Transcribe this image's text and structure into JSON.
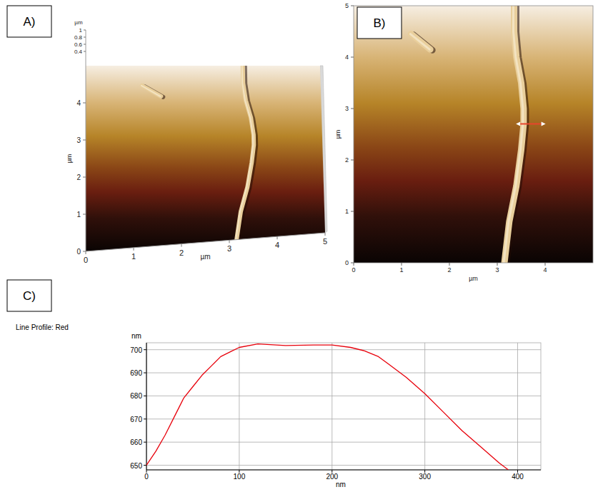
{
  "chart_data": [
    {
      "type": "surface",
      "panel_label": "A)",
      "x_label": "µm",
      "y_label": "µm",
      "z_label": "µm",
      "xlim": [
        0,
        5
      ],
      "ylim": [
        0,
        5
      ],
      "zlim": [
        0,
        1
      ],
      "xticks": [
        0,
        1,
        2,
        3,
        4,
        5
      ],
      "yticks": [
        0,
        1,
        2,
        3,
        4
      ],
      "zticks": [
        0.4,
        0.6,
        0.8,
        1
      ],
      "series": [
        {
          "x": [
            3.35,
            3.35,
            3.4,
            3.5,
            3.55,
            3.55,
            3.5,
            3.4,
            3.25,
            3.15
          ],
          "values": [
            5,
            4.5,
            4,
            3.5,
            3,
            2.7,
            2.2,
            1.5,
            0.8,
            0
          ],
          "color": "#e9cf9c",
          "line_style": "thick"
        },
        {
          "x": [
            1.2,
            1.6
          ],
          "values": [
            4.45,
            4.15
          ],
          "color": "#e9cf9c",
          "line_style": "thick"
        }
      ]
    },
    {
      "type": "image",
      "panel_label": "B)",
      "x_label": "µm",
      "y_label": "µm",
      "xlim": [
        0,
        5
      ],
      "ylim": [
        0,
        5
      ],
      "xticks": [
        0,
        1,
        2,
        3,
        4
      ],
      "yticks": [
        0,
        1,
        2,
        3,
        4,
        5
      ],
      "series": [
        {
          "x": [
            3.35,
            3.35,
            3.4,
            3.5,
            3.55,
            3.55,
            3.5,
            3.4,
            3.25,
            3.15
          ],
          "values": [
            5,
            4.5,
            4,
            3.5,
            3,
            2.7,
            2.2,
            1.5,
            0.8,
            0
          ],
          "color": "#e9cf9c",
          "line_style": "thick"
        },
        {
          "x": [
            1.2,
            1.6
          ],
          "values": [
            4.45,
            4.15
          ],
          "color": "#e9cf9c",
          "line_style": "thick"
        },
        {
          "x": [
            3.45,
            3.95
          ],
          "values": [
            2.7,
            2.7
          ],
          "color": "#e8452c",
          "line_style": "solid",
          "marker": "arrow"
        }
      ]
    },
    {
      "type": "line",
      "panel_label": "C)",
      "title": "Line Profile: Red",
      "x_label": "nm",
      "y_label": "nm",
      "xlim": [
        0,
        425
      ],
      "ylim": [
        648,
        703
      ],
      "xticks": [
        0,
        100,
        200,
        300,
        400
      ],
      "yticks": [
        650,
        660,
        670,
        680,
        690,
        700
      ],
      "grid": true,
      "color": "#e8000b",
      "x": [
        0,
        10,
        20,
        30,
        40,
        50,
        60,
        70,
        80,
        90,
        100,
        120,
        150,
        180,
        200,
        220,
        235,
        250,
        260,
        280,
        300,
        320,
        340,
        360,
        380,
        390
      ],
      "values": [
        650,
        656,
        663,
        671,
        679,
        684,
        689,
        693,
        697,
        699,
        701,
        702.5,
        701.8,
        702,
        702,
        701,
        699.5,
        697,
        694,
        688,
        681,
        673,
        665,
        658,
        651,
        648
      ]
    }
  ]
}
